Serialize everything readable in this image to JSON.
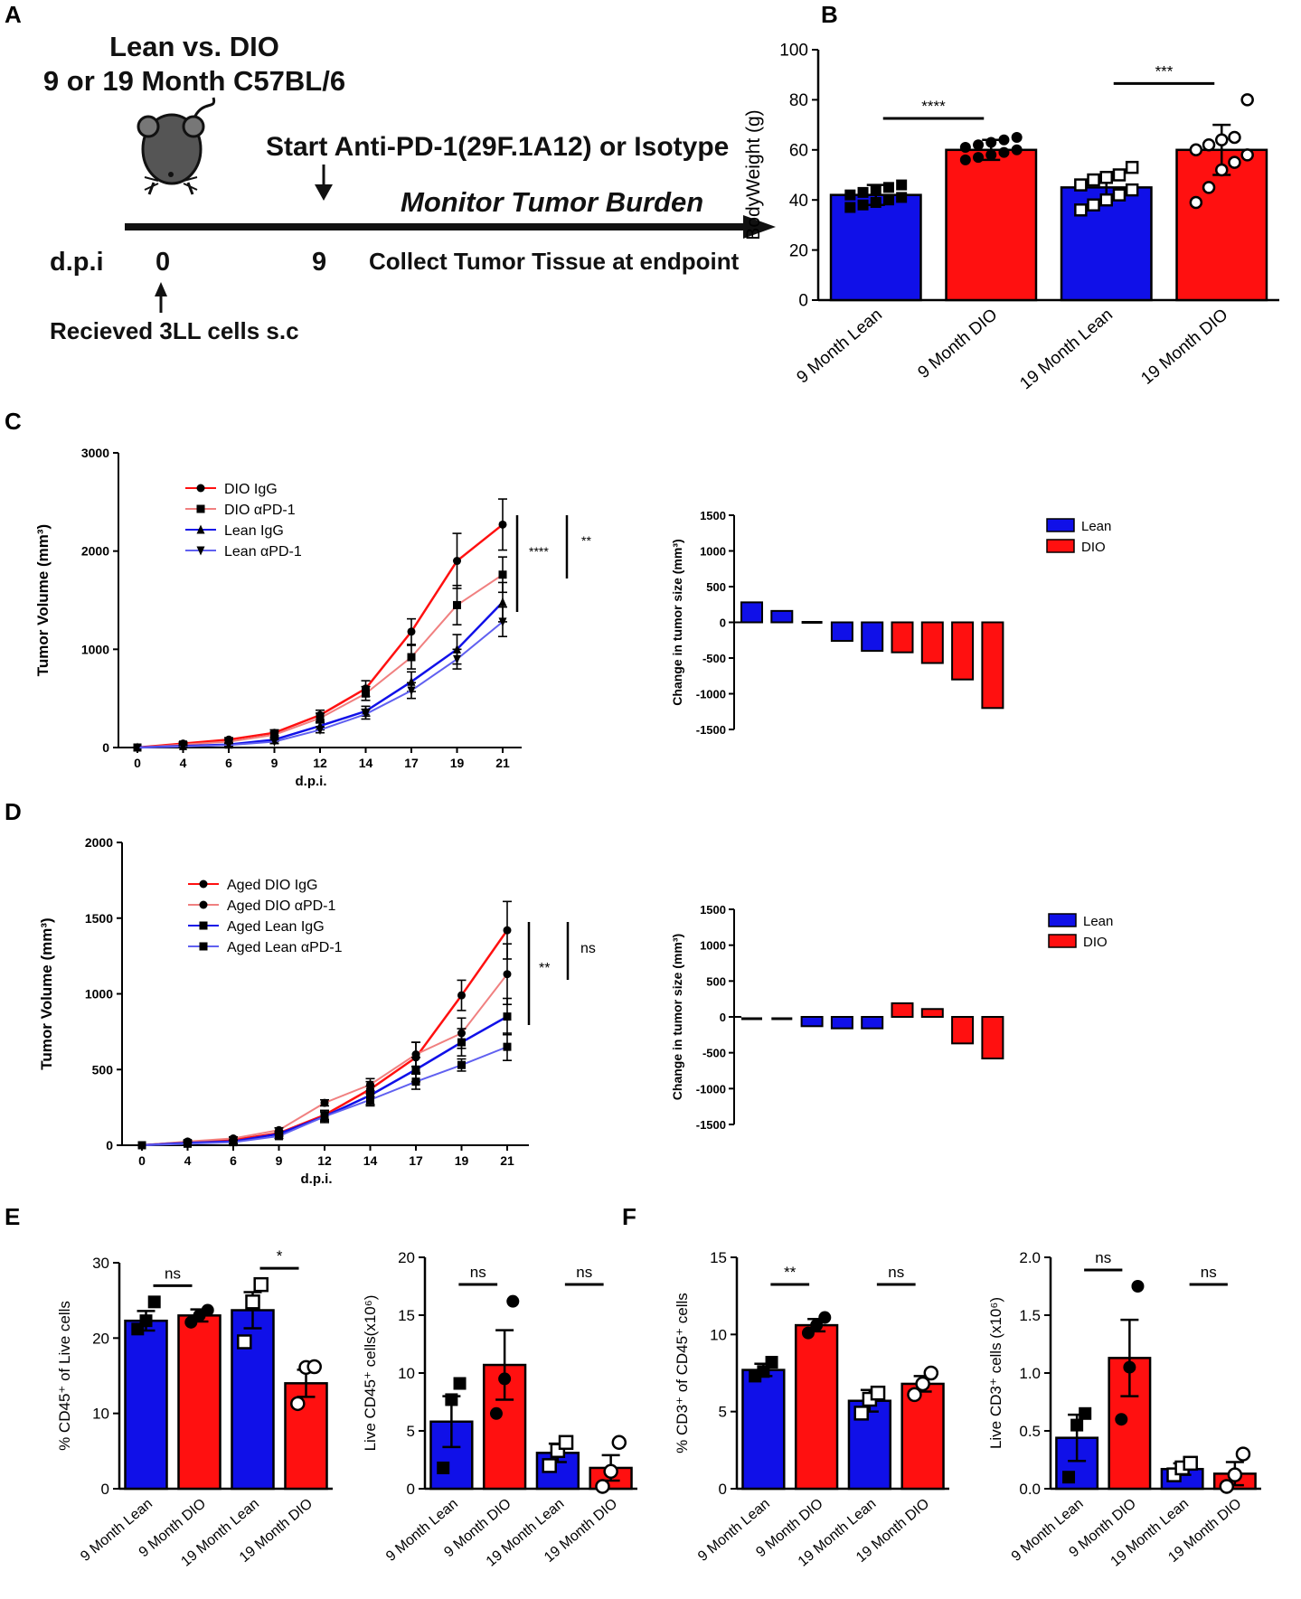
{
  "panel_letters": [
    "A",
    "B",
    "C",
    "D",
    "E",
    "F"
  ],
  "schematic": {
    "title_line1": "Lean vs. DIO",
    "title_line2": "9 or 19 Month C57BL/6",
    "start_label": "Start Anti-PD-1(29F.1A12) or Isotype",
    "monitor_label": "Monitor Tumor Burden",
    "dpi_label": "d.p.i",
    "day0": "0",
    "day9": "9",
    "collect_label": "Collect Tumor Tissue at endpoint",
    "received_label": "Recieved 3LL cells s.c"
  },
  "colors": {
    "lean": "#1010e8",
    "dio": "#ff1010",
    "dio_light": "#f08080",
    "lean_light": "#6060f0"
  },
  "chart_data": [
    {
      "id": "B",
      "type": "bar",
      "ylabel": "BodyWeight (g)",
      "ylim": [
        0,
        100
      ],
      "yticks": [
        "0",
        "20",
        "40",
        "60",
        "80",
        "100"
      ],
      "categories": [
        "9 Month Lean",
        "9 Month DIO",
        "19 Month Lean",
        "19 Month DIO"
      ],
      "values": [
        42,
        60,
        45,
        60
      ],
      "errors": [
        4,
        4,
        5,
        10
      ],
      "points": [
        [
          37,
          38,
          39,
          40,
          41,
          42,
          43,
          44,
          45,
          46
        ],
        [
          56,
          57,
          58,
          59,
          60,
          61,
          62,
          63,
          64,
          65
        ],
        [
          36,
          38,
          40,
          42,
          44,
          46,
          48,
          49,
          50,
          53
        ],
        [
          39,
          45,
          52,
          55,
          58,
          60,
          62,
          64,
          65,
          80
        ]
      ],
      "sig": [
        "****",
        "***"
      ]
    },
    {
      "id": "C-line",
      "type": "line",
      "xlabel": "d.p.i.",
      "ylabel": "Tumor Volume (mm³)",
      "ylim": [
        0,
        3000
      ],
      "yticks": [
        "0",
        "1000",
        "2000",
        "3000"
      ],
      "x": [
        "0",
        "4",
        "6",
        "9",
        "12",
        "14",
        "17",
        "19",
        "21"
      ],
      "series": [
        {
          "name": "DIO IgG",
          "values": [
            0,
            40,
            80,
            150,
            330,
            600,
            1180,
            1900,
            2270
          ],
          "err": [
            0,
            15,
            20,
            30,
            50,
            80,
            130,
            280,
            260
          ]
        },
        {
          "name": "DIO αPD-1",
          "values": [
            0,
            30,
            60,
            130,
            300,
            550,
            920,
            1450,
            1760
          ],
          "err": [
            0,
            10,
            20,
            30,
            50,
            70,
            120,
            200,
            180
          ]
        },
        {
          "name": "Lean IgG",
          "values": [
            0,
            15,
            30,
            80,
            220,
            370,
            670,
            1000,
            1480
          ],
          "err": [
            0,
            10,
            15,
            20,
            40,
            50,
            100,
            150,
            200
          ]
        },
        {
          "name": "Lean αPD-1",
          "values": [
            0,
            10,
            25,
            60,
            180,
            340,
            580,
            900,
            1280
          ],
          "err": [
            0,
            10,
            15,
            20,
            30,
            50,
            80,
            100,
            150
          ]
        }
      ],
      "sig": [
        "****",
        "**"
      ]
    },
    {
      "id": "C-waterfall",
      "type": "bar",
      "ylabel": "Change in tumor size (mm³)",
      "ylim": [
        -1500,
        1500
      ],
      "yticks": [
        "1500",
        "1000",
        "500",
        "0",
        "-500",
        "-1000",
        "-1500"
      ],
      "legend": [
        "Lean",
        "DIO"
      ],
      "values": [
        280,
        160,
        0,
        -260,
        -400,
        -420,
        -570,
        -800,
        -1200
      ],
      "groups": [
        "Lean",
        "Lean",
        "Lean",
        "Lean",
        "Lean",
        "DIO",
        "DIO",
        "DIO",
        "DIO"
      ]
    },
    {
      "id": "D-line",
      "type": "line",
      "xlabel": "d.p.i.",
      "ylabel": "Tumor Volume (mm³)",
      "ylim": [
        0,
        2000
      ],
      "yticks": [
        "0",
        "500",
        "1000",
        "1500",
        "2000"
      ],
      "x": [
        "0",
        "4",
        "6",
        "9",
        "12",
        "14",
        "17",
        "19",
        "21"
      ],
      "series": [
        {
          "name": "Aged DIO IgG",
          "values": [
            0,
            20,
            35,
            80,
            200,
            370,
            580,
            990,
            1420
          ],
          "err": [
            0,
            8,
            10,
            15,
            30,
            50,
            100,
            100,
            190
          ]
        },
        {
          "name": "Aged DIO αPD-1",
          "values": [
            0,
            25,
            45,
            100,
            280,
            400,
            600,
            740,
            1130
          ],
          "err": [
            0,
            8,
            10,
            15,
            20,
            40,
            80,
            100,
            200
          ]
        },
        {
          "name": "Aged Lean IgG",
          "values": [
            0,
            15,
            25,
            75,
            190,
            330,
            500,
            680,
            850
          ],
          "err": [
            0,
            8,
            10,
            15,
            40,
            60,
            80,
            90,
            120
          ]
        },
        {
          "name": "Aged Lean αPD-1",
          "values": [
            0,
            10,
            20,
            60,
            190,
            300,
            420,
            530,
            650
          ],
          "err": [
            0,
            8,
            10,
            15,
            30,
            40,
            50,
            40,
            90
          ]
        }
      ],
      "sig": [
        "**",
        "ns"
      ]
    },
    {
      "id": "D-waterfall",
      "type": "bar",
      "ylabel": "Change in tumor size (mm³)",
      "ylim": [
        -1500,
        1500
      ],
      "yticks": [
        "1500",
        "1000",
        "500",
        "0",
        "-500",
        "-1000",
        "-1500"
      ],
      "legend": [
        "Lean",
        "DIO"
      ],
      "values": [
        -25,
        -25,
        -130,
        -160,
        -160,
        190,
        110,
        -370,
        -580
      ],
      "groups": [
        "Lean",
        "Lean",
        "Lean",
        "Lean",
        "Lean",
        "DIO",
        "DIO",
        "DIO",
        "DIO"
      ]
    },
    {
      "id": "E1",
      "type": "bar",
      "ylabel": "% CD45⁺ of Live cells",
      "ylim": [
        0,
        30
      ],
      "yticks": [
        "0",
        "10",
        "20",
        "30"
      ],
      "categories": [
        "9 Month Lean",
        "9 Month DIO",
        "19 Month Lean",
        "19 Month DIO"
      ],
      "values": [
        22.3,
        23.0,
        23.7,
        14.0
      ],
      "errors": [
        1.3,
        0.8,
        2.4,
        1.8
      ],
      "points": [
        [
          21.2,
          22.3,
          24.8
        ],
        [
          22.1,
          23.0,
          23.7
        ],
        [
          19.5,
          24.8,
          27.1
        ],
        [
          11.3,
          16.1,
          16.2
        ]
      ],
      "sig": [
        "ns",
        "*"
      ]
    },
    {
      "id": "E2",
      "type": "bar",
      "ylabel": "Live CD45⁺ cells(x10⁶)",
      "ylim": [
        0,
        20
      ],
      "yticks": [
        "0",
        "5",
        "10",
        "15",
        "20"
      ],
      "categories": [
        "9 Month Lean",
        "9 Month DIO",
        "19 Month Lean",
        "19 Month DIO"
      ],
      "values": [
        5.8,
        10.7,
        3.1,
        1.8
      ],
      "errors": [
        2.2,
        3.0,
        0.8,
        1.1
      ],
      "points": [
        [
          1.8,
          7.7,
          9.1
        ],
        [
          6.5,
          9.5,
          16.2
        ],
        [
          2.0,
          3.3,
          4.0
        ],
        [
          0.2,
          1.5,
          4.0
        ]
      ],
      "sig": [
        "ns",
        "ns"
      ]
    },
    {
      "id": "F1",
      "type": "bar",
      "ylabel": "% CD3⁺ of CD45⁺ cells",
      "ylim": [
        0,
        15
      ],
      "yticks": [
        "0",
        "5",
        "10",
        "15"
      ],
      "categories": [
        "9 Month Lean",
        "9 Month DIO",
        "19 Month Lean",
        "19 Month DIO"
      ],
      "values": [
        7.7,
        10.6,
        5.7,
        6.8
      ],
      "errors": [
        0.4,
        0.4,
        0.7,
        0.5
      ],
      "points": [
        [
          7.3,
          7.6,
          8.2
        ],
        [
          10.1,
          10.6,
          11.1
        ],
        [
          4.9,
          5.8,
          6.2
        ],
        [
          6.1,
          6.8,
          7.5
        ]
      ],
      "sig": [
        "**",
        "ns"
      ]
    },
    {
      "id": "F2",
      "type": "bar",
      "ylabel": "Live CD3⁺ cells (x10⁶)",
      "ylim": [
        0,
        2.0
      ],
      "yticks": [
        "0.0",
        "0.5",
        "1.0",
        "1.5",
        "2.0"
      ],
      "categories": [
        "9 Month Lean",
        "9 Month DIO",
        "19 Month Lean",
        "19 Month DIO"
      ],
      "values": [
        0.44,
        1.13,
        0.17,
        0.13
      ],
      "errors": [
        0.2,
        0.33,
        0.05,
        0.1
      ],
      "points": [
        [
          0.1,
          0.55,
          0.65
        ],
        [
          0.6,
          1.05,
          1.75
        ],
        [
          0.12,
          0.18,
          0.22
        ],
        [
          0.02,
          0.12,
          0.3
        ]
      ],
      "sig": [
        "ns",
        "ns"
      ]
    }
  ]
}
